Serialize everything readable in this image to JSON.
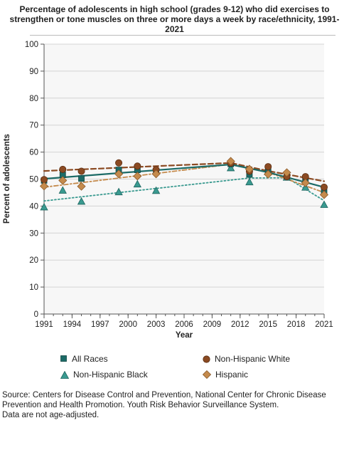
{
  "chart_data": {
    "type": "line",
    "title": "Percentage of adolescents in high school (grades 9-12) who did exercises to strengthen or tone muscles on three or more days a week by race/ethnicity, 1991-2021",
    "xlabel": "Year",
    "ylabel": "Percent of adolescents",
    "ylim": [
      0,
      100
    ],
    "yticks": [
      0,
      10,
      20,
      30,
      40,
      50,
      60,
      70,
      80,
      90,
      100
    ],
    "xlim": [
      1991,
      2021
    ],
    "xticks": [
      "1991",
      "1994",
      "1997",
      "2000",
      "2003",
      "2006",
      "2009",
      "2012",
      "2015",
      "2018",
      "2021"
    ],
    "grid": true,
    "legend_position": "bottom",
    "series": [
      {
        "name": "All Races",
        "color": "#1c6b67",
        "marker": "square",
        "x": [
          1991,
          1993,
          1995,
          1999,
          2001,
          2003,
          2011,
          2013,
          2015,
          2017,
          2019,
          2021
        ],
        "values": [
          49.5,
          51.6,
          50.2,
          53.4,
          53.4,
          52.9,
          55.6,
          51.7,
          52.8,
          51.1,
          49.6,
          45.1
        ],
        "trend": [
          [
            1991,
            50.1
          ],
          [
            2000,
            52.5
          ],
          [
            2011,
            55.4
          ],
          [
            2015,
            52.5
          ],
          [
            2021,
            47.0
          ]
        ]
      },
      {
        "name": "Non-Hispanic White",
        "color": "#8b4a22",
        "marker": "circle",
        "x": [
          1991,
          1993,
          1995,
          1999,
          2001,
          2003,
          2011,
          2013,
          2015,
          2017,
          2019,
          2021
        ],
        "values": [
          49.8,
          53.6,
          52.9,
          56.0,
          54.8,
          53.5,
          55.9,
          52.9,
          54.6,
          50.9,
          50.9,
          47.0
        ],
        "trend": [
          [
            1991,
            53.0
          ],
          [
            2011,
            56.0
          ],
          [
            2015,
            53.0
          ],
          [
            2021,
            49.2
          ]
        ]
      },
      {
        "name": "Non-Hispanic Black",
        "color": "#3a9a90",
        "marker": "triangle",
        "x": [
          1991,
          1993,
          1995,
          1999,
          2001,
          2003,
          2011,
          2013,
          2015,
          2017,
          2019,
          2021
        ],
        "values": [
          39.6,
          45.8,
          41.7,
          45.2,
          48.1,
          45.7,
          54.1,
          48.9,
          52.6,
          50.6,
          46.9,
          40.5
        ],
        "trend": [
          [
            1991,
            41.9
          ],
          [
            2013,
            50.4
          ],
          [
            2017,
            50.5
          ],
          [
            2021,
            42.0
          ]
        ]
      },
      {
        "name": "Hispanic",
        "color": "#c48a4c",
        "marker": "diamond",
        "x": [
          1991,
          1993,
          1995,
          1999,
          2001,
          2003,
          2011,
          2013,
          2015,
          2017,
          2019,
          2021
        ],
        "values": [
          47.4,
          49.5,
          47.3,
          51.9,
          51.1,
          51.9,
          56.6,
          53.7,
          51.8,
          52.4,
          48.6,
          44.2
        ],
        "trend": [
          [
            1991,
            47.0
          ],
          [
            2011,
            55.5
          ],
          [
            2015,
            52.5
          ],
          [
            2021,
            45.0
          ]
        ]
      }
    ]
  },
  "source_lines": [
    "Source: Centers for Disease Control and Prevention, National Center for Chronic Disease",
    "Prevention and Health Promotion. Youth Risk Behavior Surveillance System.",
    "Data are not age-adjusted."
  ]
}
